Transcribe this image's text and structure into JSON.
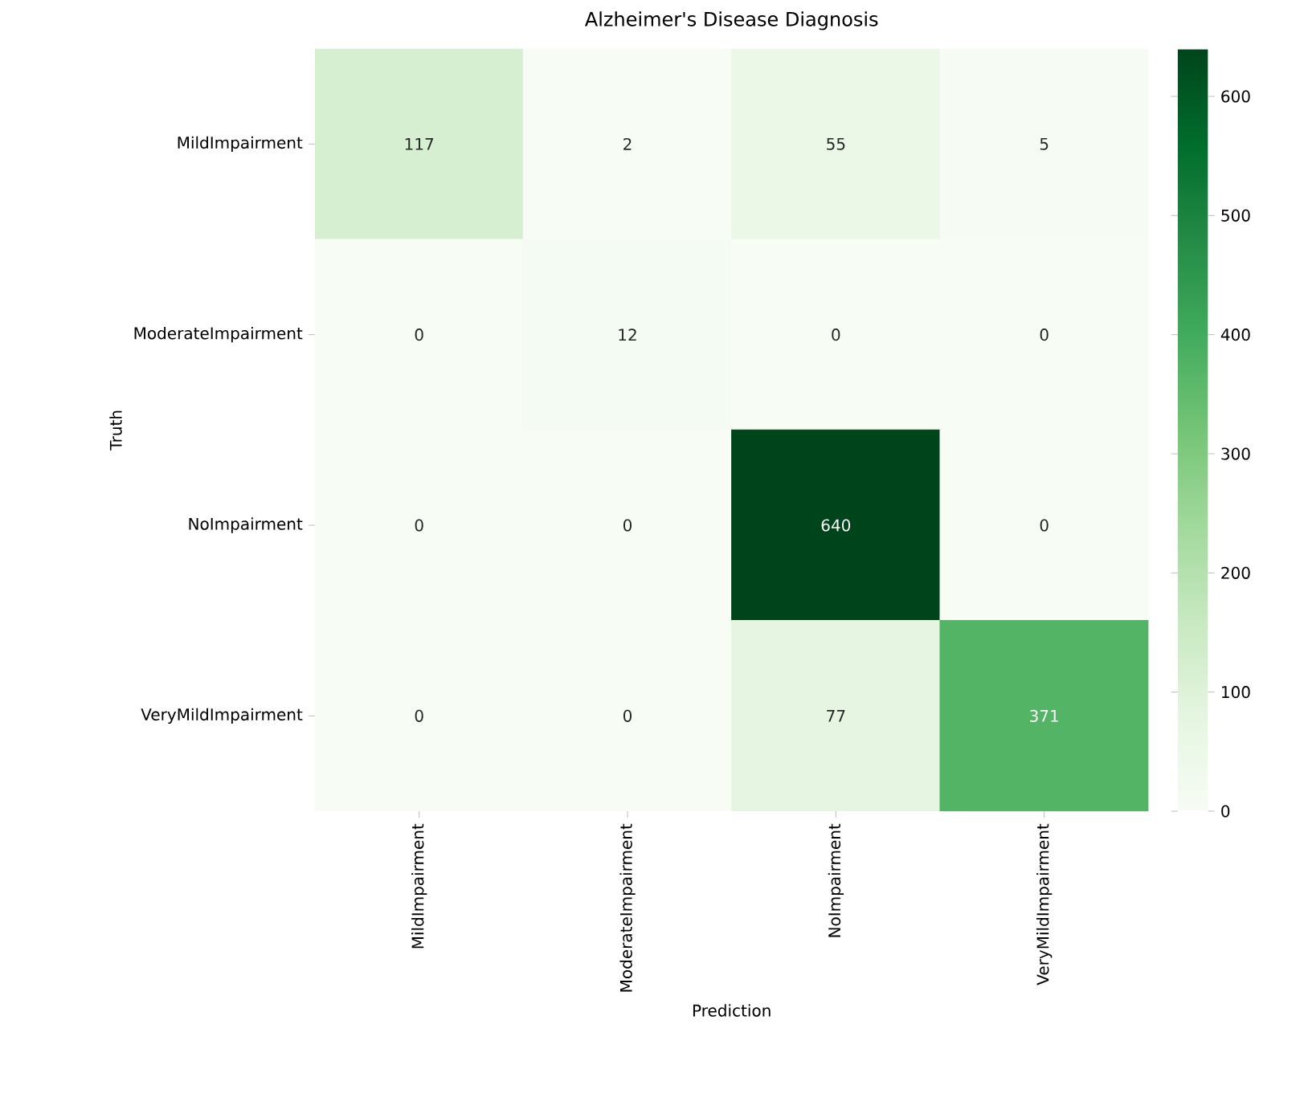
{
  "chart_data": {
    "type": "heatmap",
    "title": "Alzheimer's Disease Diagnosis",
    "xlabel": "Prediction",
    "ylabel": "Truth",
    "categories": [
      "MildImpairment",
      "ModerateImpairment",
      "NoImpairment",
      "VeryMildImpairment"
    ],
    "y_categories": [
      "MildImpairment",
      "ModerateImpairment",
      "NoImpairment",
      "VeryMildImpairment"
    ],
    "cells": [
      [
        117,
        2,
        55,
        5
      ],
      [
        0,
        12,
        0,
        0
      ],
      [
        0,
        0,
        640,
        0
      ],
      [
        0,
        0,
        77,
        371
      ]
    ],
    "clim": [
      0,
      640
    ],
    "cticks": [
      0,
      100,
      200,
      300,
      400,
      500,
      600
    ],
    "data_labels": true
  }
}
